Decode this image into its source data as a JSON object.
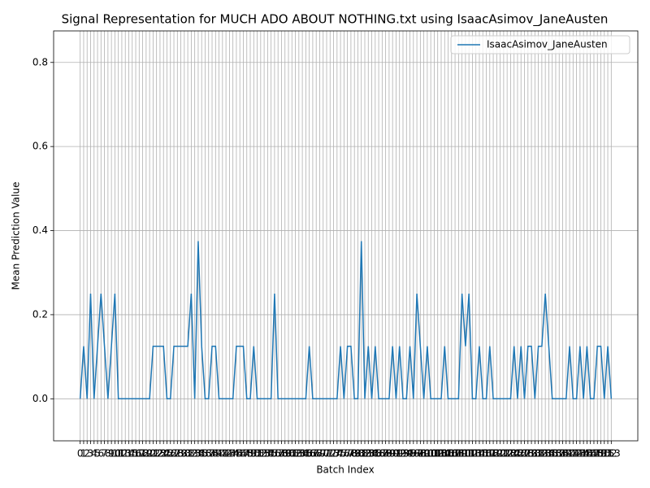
{
  "chart_data": {
    "type": "line",
    "title": "Signal Representation for MUCH ADO ABOUT NOTHING.txt using IsaacAsimov_JaneAusten",
    "xlabel": "Batch Index",
    "ylabel": "Mean Prediction Value",
    "x": [
      0,
      1,
      2,
      3,
      4,
      5,
      6,
      7,
      8,
      9,
      10,
      11,
      12,
      13,
      14,
      15,
      16,
      17,
      18,
      19,
      20,
      21,
      22,
      23,
      24,
      25,
      26,
      27,
      28,
      29,
      30,
      31,
      32,
      33,
      34,
      35,
      36,
      37,
      38,
      39,
      40,
      41,
      42,
      43,
      44,
      45,
      46,
      47,
      48,
      49,
      50,
      51,
      52,
      53,
      54,
      55,
      56,
      57,
      58,
      59,
      60,
      61,
      62,
      63,
      64,
      65,
      66,
      67,
      68,
      69,
      70,
      71,
      72,
      73,
      74,
      75,
      76,
      77,
      78,
      79,
      80,
      81,
      82,
      83,
      84,
      85,
      86,
      87,
      88,
      89,
      90,
      91,
      92,
      93,
      94,
      95,
      96,
      97,
      98,
      99,
      100,
      101,
      102,
      103,
      104,
      105,
      106,
      107,
      108,
      109,
      110,
      111,
      112,
      113,
      114,
      115,
      116,
      117,
      118,
      119,
      120,
      121,
      122,
      123,
      124,
      125,
      126,
      127,
      128,
      129,
      130,
      131,
      132,
      133,
      134,
      135,
      136,
      137,
      138,
      139,
      140,
      141,
      142,
      143,
      144,
      145,
      146,
      147,
      148,
      149,
      150,
      151,
      152,
      153
    ],
    "series": [
      {
        "name": "IsaacAsimov_JaneAusten",
        "color": "#1f77b4",
        "values": [
          0,
          0.125,
          0,
          0.25,
          0,
          0.125,
          0.25,
          0.125,
          0,
          0.125,
          0.25,
          0,
          0,
          0,
          0,
          0,
          0,
          0,
          0,
          0,
          0,
          0.125,
          0.125,
          0.125,
          0.125,
          0,
          0,
          0.125,
          0.125,
          0.125,
          0.125,
          0.125,
          0.25,
          0,
          0.375,
          0.125,
          0,
          0,
          0.125,
          0.125,
          0,
          0,
          0,
          0,
          0,
          0.125,
          0.125,
          0.125,
          0,
          0,
          0.125,
          0,
          0,
          0,
          0,
          0,
          0.25,
          0,
          0,
          0,
          0,
          0,
          0,
          0,
          0,
          0,
          0.125,
          0,
          0,
          0,
          0,
          0,
          0,
          0,
          0,
          0.125,
          0,
          0.125,
          0.125,
          0,
          0,
          0.375,
          0,
          0.125,
          0,
          0.125,
          0,
          0,
          0,
          0,
          0.125,
          0,
          0.125,
          0,
          0,
          0.125,
          0,
          0.25,
          0.125,
          0,
          0.125,
          0,
          0,
          0,
          0,
          0.125,
          0,
          0,
          0,
          0,
          0.25,
          0.125,
          0.25,
          0,
          0,
          0.125,
          0,
          0,
          0.125,
          0,
          0,
          0,
          0,
          0,
          0,
          0.125,
          0,
          0.125,
          0,
          0.125,
          0.125,
          0,
          0.125,
          0.125,
          0.25,
          0.125,
          0,
          0,
          0,
          0,
          0,
          0.125,
          0,
          0,
          0.125,
          0,
          0.125,
          0,
          0,
          0.125,
          0.125,
          0,
          0.125,
          0
        ]
      }
    ],
    "xlim": [
      -7.65,
      160.65
    ],
    "ylim": [
      -0.1,
      0.875
    ],
    "xticks": [
      0,
      1,
      2,
      3,
      4,
      5,
      6,
      7,
      8,
      9,
      10,
      11,
      12,
      13,
      14,
      15,
      16,
      17,
      18,
      19,
      20,
      21,
      22,
      23,
      24,
      25,
      26,
      27,
      28,
      29,
      30,
      31,
      32,
      33,
      34,
      35,
      36,
      37,
      38,
      39,
      40,
      41,
      42,
      43,
      44,
      45,
      46,
      47,
      48,
      49,
      50,
      51,
      52,
      53,
      54,
      55,
      56,
      57,
      58,
      59,
      60,
      61,
      62,
      63,
      64,
      65,
      66,
      67,
      68,
      69,
      70,
      71,
      72,
      73,
      74,
      75,
      76,
      77,
      78,
      79,
      80,
      81,
      82,
      83,
      84,
      85,
      86,
      87,
      88,
      89,
      90,
      91,
      92,
      93,
      94,
      95,
      96,
      97,
      98,
      99,
      100,
      101,
      102,
      103,
      104,
      105,
      106,
      107,
      108,
      109,
      110,
      111,
      112,
      113,
      114,
      115,
      116,
      117,
      118,
      119,
      120,
      121,
      122,
      123,
      124,
      125,
      126,
      127,
      128,
      129,
      130,
      131,
      132,
      133,
      134,
      135,
      136,
      137,
      138,
      139,
      140,
      141,
      142,
      143,
      144,
      145,
      146,
      147,
      148,
      149,
      150,
      151,
      152,
      153
    ],
    "yticks": [
      {
        "value": 0,
        "label": "0.0"
      },
      {
        "value": 0.2,
        "label": "0.2"
      },
      {
        "value": 0.4,
        "label": "0.4"
      },
      {
        "value": 0.6,
        "label": "0.6"
      },
      {
        "value": 0.8,
        "label": "0.8"
      }
    ],
    "grid": true,
    "legend": "upper right"
  }
}
